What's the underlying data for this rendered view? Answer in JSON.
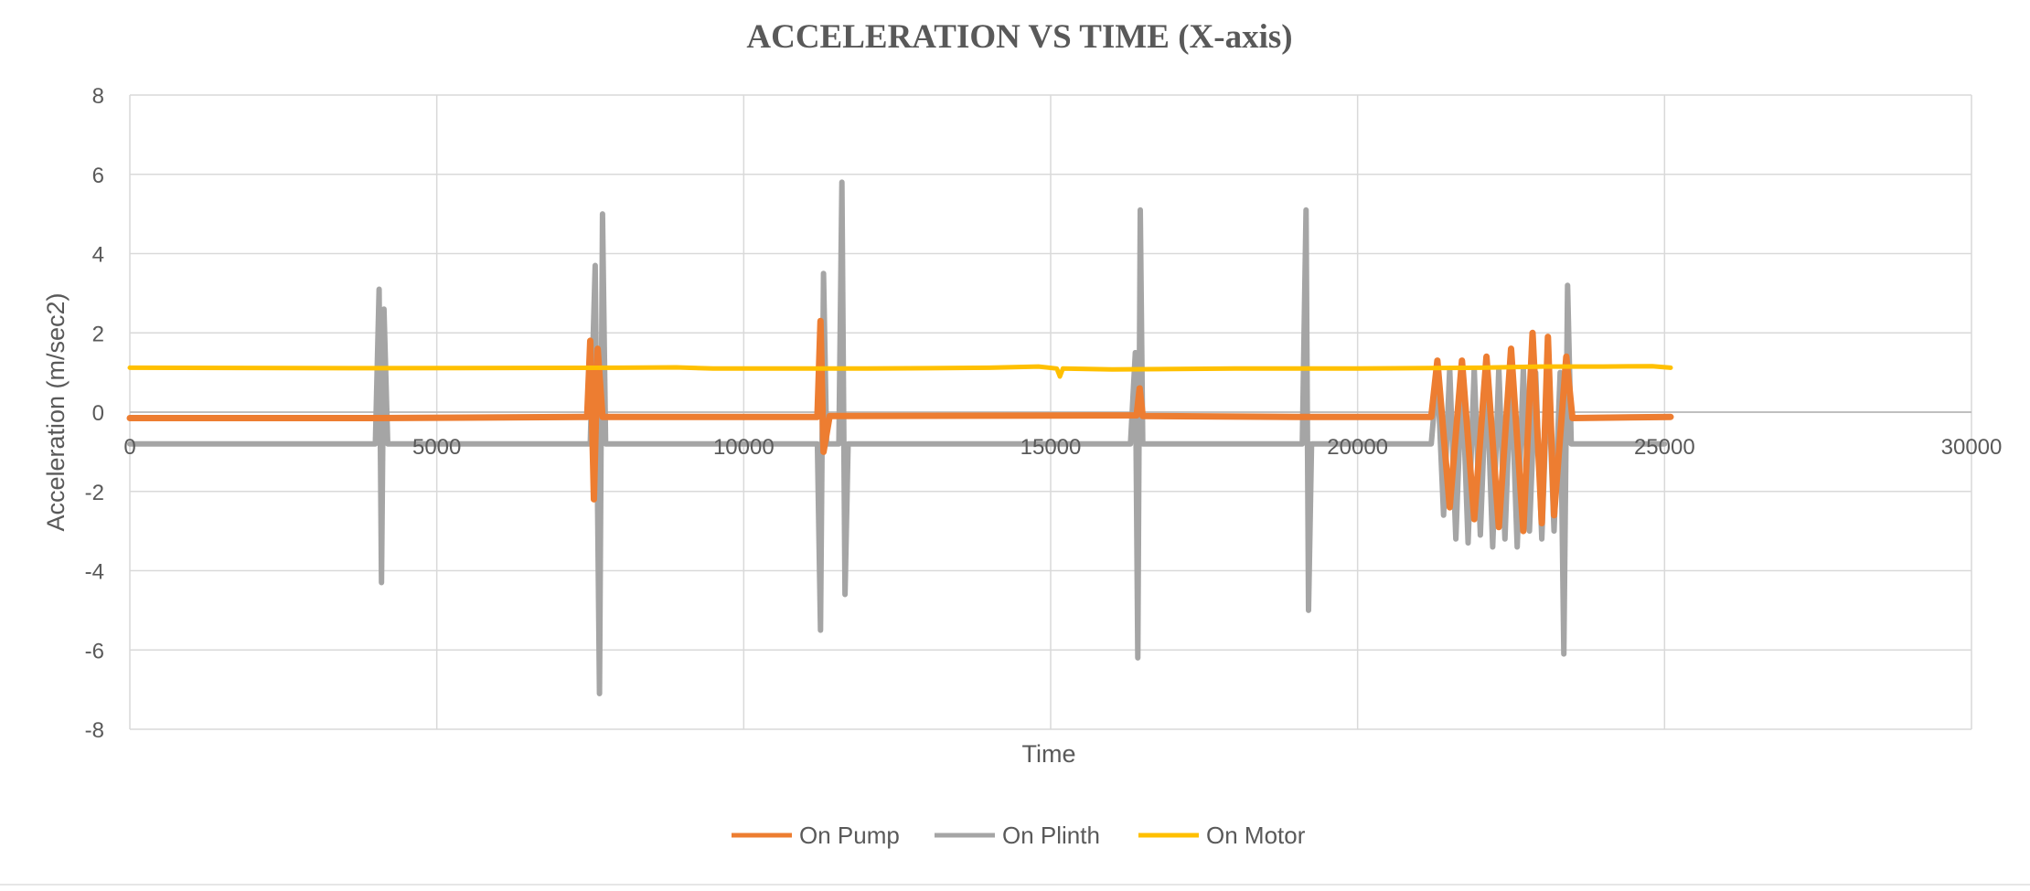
{
  "chart_data": {
    "type": "line",
    "title": "ACCELERATION VS TIME (X-axis)",
    "xlabel": "Time",
    "ylabel": "Acceleration (m/sec2)",
    "xlim": [
      0,
      30000
    ],
    "ylim": [
      -8,
      8
    ],
    "x_ticks": [
      0,
      5000,
      10000,
      15000,
      20000,
      25000,
      30000
    ],
    "x_tick_labels": [
      "0",
      "5000",
      "10000",
      "15000",
      "20000",
      "25000",
      "30000"
    ],
    "y_ticks": [
      -8,
      -6,
      -4,
      -2,
      0,
      2,
      4,
      6,
      8
    ],
    "y_tick_labels": [
      "-8",
      "-6",
      "-4",
      "-2",
      "0",
      "2",
      "4",
      "6",
      "8"
    ],
    "grid": true,
    "legend_position": "bottom",
    "series": [
      {
        "name": "On Pump",
        "color": "#ED7D31",
        "points": [
          [
            0,
            -0.15
          ],
          [
            4000,
            -0.15
          ],
          [
            7450,
            -0.12
          ],
          [
            7500,
            1.8
          ],
          [
            7560,
            -2.2
          ],
          [
            7620,
            1.6
          ],
          [
            7700,
            -0.12
          ],
          [
            11200,
            -0.12
          ],
          [
            11250,
            2.3
          ],
          [
            11300,
            -1.0
          ],
          [
            11400,
            -0.1
          ],
          [
            16400,
            -0.08
          ],
          [
            16450,
            0.6
          ],
          [
            16500,
            -0.1
          ],
          [
            19000,
            -0.12
          ],
          [
            21200,
            -0.12
          ],
          [
            21300,
            1.3
          ],
          [
            21500,
            -2.4
          ],
          [
            21700,
            1.3
          ],
          [
            21900,
            -2.7
          ],
          [
            22100,
            1.4
          ],
          [
            22300,
            -2.9
          ],
          [
            22500,
            1.6
          ],
          [
            22700,
            -3.0
          ],
          [
            22850,
            2.0
          ],
          [
            23000,
            -2.8
          ],
          [
            23100,
            1.9
          ],
          [
            23200,
            -2.6
          ],
          [
            23400,
            1.4
          ],
          [
            23500,
            -0.15
          ],
          [
            25100,
            -0.12
          ]
        ]
      },
      {
        "name": "On Plinth",
        "color": "#A5A5A5",
        "points": [
          [
            0,
            -0.8
          ],
          [
            4000,
            -0.8
          ],
          [
            4060,
            3.1
          ],
          [
            4100,
            -4.3
          ],
          [
            4140,
            2.6
          ],
          [
            4200,
            -0.8
          ],
          [
            7500,
            -0.8
          ],
          [
            7580,
            3.7
          ],
          [
            7650,
            -7.1
          ],
          [
            7700,
            5.0
          ],
          [
            7750,
            -0.8
          ],
          [
            11200,
            -0.8
          ],
          [
            11250,
            -5.5
          ],
          [
            11300,
            3.5
          ],
          [
            11350,
            -0.8
          ],
          [
            11550,
            -0.8
          ],
          [
            11600,
            5.8
          ],
          [
            11650,
            -4.6
          ],
          [
            11700,
            -0.8
          ],
          [
            16300,
            -0.8
          ],
          [
            16380,
            1.5
          ],
          [
            16420,
            -6.2
          ],
          [
            16460,
            5.1
          ],
          [
            16500,
            -0.8
          ],
          [
            19100,
            -0.8
          ],
          [
            19160,
            5.1
          ],
          [
            19200,
            -5.0
          ],
          [
            19250,
            -0.8
          ],
          [
            21200,
            -0.8
          ],
          [
            21300,
            1.0
          ],
          [
            21400,
            -2.6
          ],
          [
            21500,
            1.1
          ],
          [
            21600,
            -3.2
          ],
          [
            21700,
            1.0
          ],
          [
            21800,
            -3.3
          ],
          [
            21900,
            1.1
          ],
          [
            22000,
            -3.1
          ],
          [
            22100,
            1.0
          ],
          [
            22200,
            -3.4
          ],
          [
            22300,
            1.1
          ],
          [
            22400,
            -3.2
          ],
          [
            22500,
            1.0
          ],
          [
            22600,
            -3.4
          ],
          [
            22700,
            1.1
          ],
          [
            22800,
            -3.0
          ],
          [
            22900,
            1.0
          ],
          [
            23000,
            -3.2
          ],
          [
            23100,
            1.1
          ],
          [
            23200,
            -3.0
          ],
          [
            23300,
            1.0
          ],
          [
            23360,
            -6.1
          ],
          [
            23420,
            3.2
          ],
          [
            23480,
            -0.8
          ],
          [
            25000,
            -0.8
          ]
        ]
      },
      {
        "name": "On Motor",
        "color": "#FFC000",
        "points": [
          [
            0,
            1.12
          ],
          [
            4000,
            1.11
          ],
          [
            8000,
            1.12
          ],
          [
            8900,
            1.13
          ],
          [
            9500,
            1.1
          ],
          [
            12000,
            1.1
          ],
          [
            14000,
            1.12
          ],
          [
            14800,
            1.15
          ],
          [
            15100,
            1.1
          ],
          [
            15150,
            0.9
          ],
          [
            15200,
            1.1
          ],
          [
            16000,
            1.08
          ],
          [
            18000,
            1.1
          ],
          [
            20000,
            1.1
          ],
          [
            22000,
            1.12
          ],
          [
            23000,
            1.15
          ],
          [
            24000,
            1.15
          ],
          [
            24800,
            1.16
          ],
          [
            25100,
            1.12
          ]
        ]
      }
    ]
  }
}
